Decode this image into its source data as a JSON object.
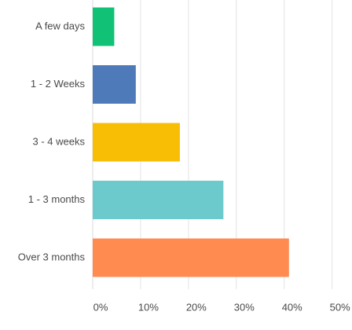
{
  "chart_data": {
    "type": "bar",
    "orientation": "horizontal",
    "title": "",
    "xlabel": "",
    "ylabel": "",
    "categories": [
      "A few days",
      "1 - 2 Weeks",
      "3 - 4 weeks",
      "1 - 3 months",
      "Over 3 months"
    ],
    "values": [
      4.5,
      9,
      18.2,
      27.3,
      41
    ],
    "colors": [
      "#10c176",
      "#4e7ab9",
      "#f8bd05",
      "#6ccacd",
      "#ff8b51"
    ],
    "xlim": [
      0,
      54
    ],
    "x_ticks": [
      0,
      10,
      20,
      30,
      40,
      50
    ],
    "x_tick_labels": [
      "0%",
      "10%",
      "20%",
      "30%",
      "40%",
      "50%"
    ],
    "grid": "vertical",
    "legend": "none"
  }
}
